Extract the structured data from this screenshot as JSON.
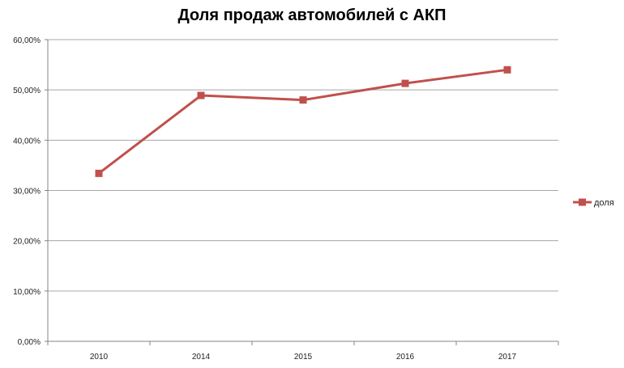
{
  "chart_data": {
    "type": "line",
    "title": "Доля продаж автомобилей с АКП",
    "xlabel": "",
    "ylabel": "",
    "categories": [
      "2010",
      "2014",
      "2015",
      "2016",
      "2017"
    ],
    "series": [
      {
        "name": "доля",
        "values": [
          33.4,
          48.9,
          48.0,
          51.3,
          54.0
        ],
        "color": "#c0504d",
        "marker": "square"
      }
    ],
    "ylim": [
      0,
      60
    ],
    "yticks": [
      "0,00%",
      "10,00%",
      "20,00%",
      "30,00%",
      "40,00%",
      "50,00%",
      "60,00%"
    ],
    "grid": true,
    "legend": "right"
  }
}
